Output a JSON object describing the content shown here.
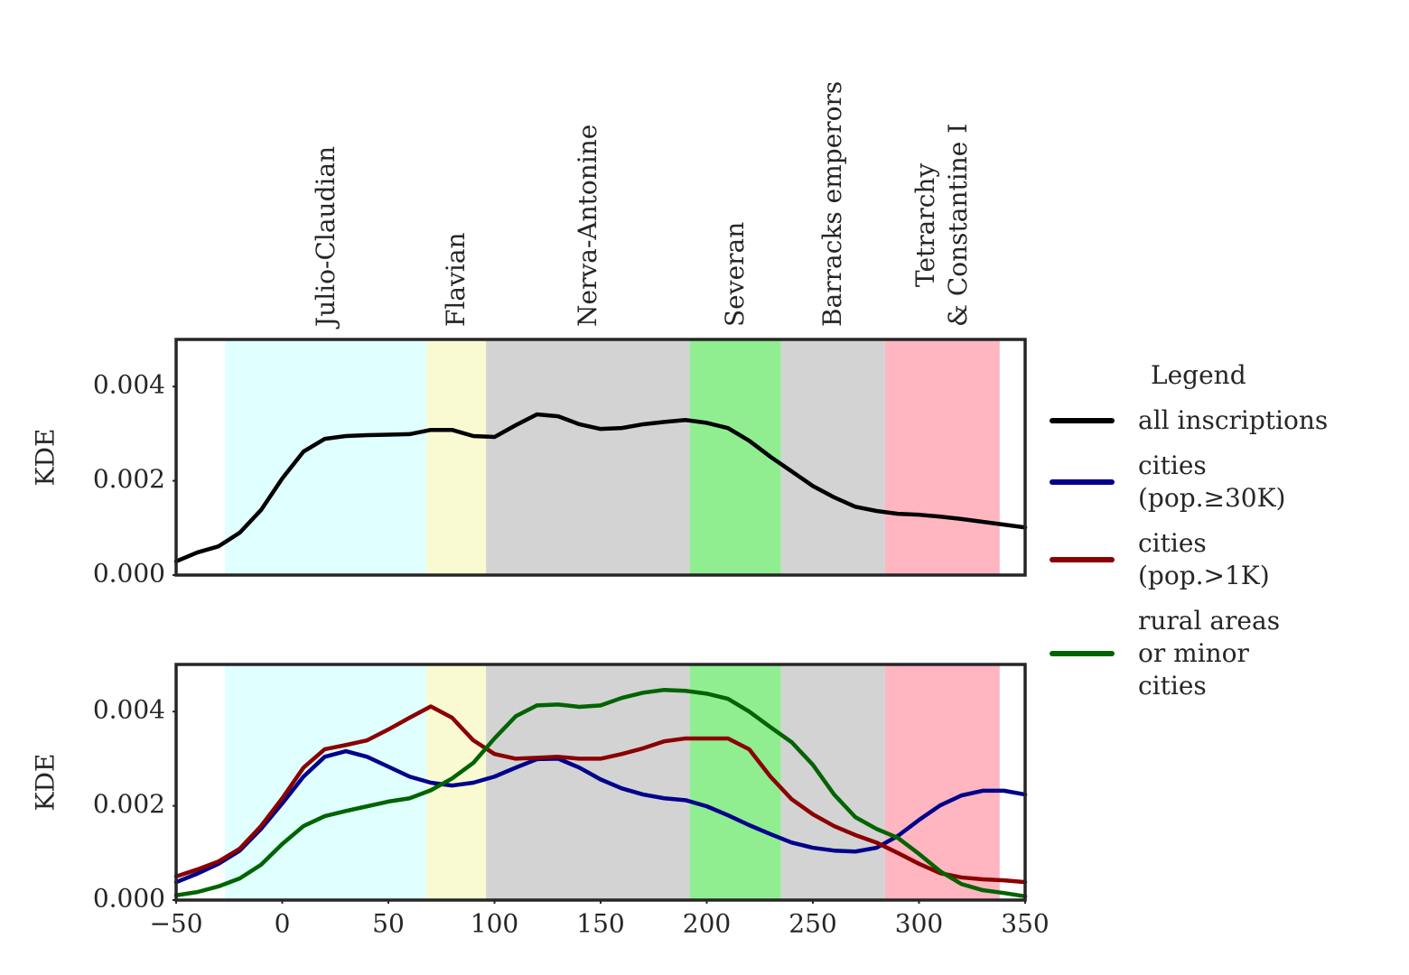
{
  "chart_data": [
    {
      "type": "line",
      "ylabel": "KDE",
      "legend_title": "Legend",
      "x": [
        -50,
        -40,
        -30,
        -20,
        -10,
        0,
        10,
        20,
        30,
        40,
        50,
        60,
        70,
        80,
        90,
        100,
        110,
        120,
        130,
        140,
        150,
        160,
        170,
        180,
        190,
        200,
        210,
        220,
        230,
        240,
        250,
        260,
        270,
        280,
        290,
        300,
        310,
        320,
        330,
        340,
        350
      ],
      "xlim": [
        -50,
        350
      ],
      "ylim": [
        0,
        0.005
      ],
      "yticks": [
        {
          "value": 0,
          "label": "0.000"
        },
        {
          "value": 0.002,
          "label": "0.002"
        },
        {
          "value": 0.004,
          "label": "0.004"
        }
      ],
      "periods": [
        {
          "name": "Julio-Claudian",
          "start": -27,
          "end": 68,
          "color": "#e0ffff"
        },
        {
          "name": "Flavian",
          "start": 68,
          "end": 96,
          "color": "#fafad2"
        },
        {
          "name": "Nerva-Antonine",
          "start": 96,
          "end": 192,
          "color": "#d3d3d3"
        },
        {
          "name": "Severan",
          "start": 192,
          "end": 235,
          "color": "#90ee90"
        },
        {
          "name": "Barracks emperors",
          "start": 235,
          "end": 284,
          "color": "#d3d3d3"
        },
        {
          "name": "Tetrarchy\n& Constantine I",
          "start": 284,
          "end": 338,
          "color": "#ffb6c1"
        }
      ],
      "series": [
        {
          "name": "all inscriptions",
          "color": "#000000",
          "values": [
            0.00029,
            0.00048,
            0.00061,
            0.0009,
            0.00138,
            0.00205,
            0.00262,
            0.00289,
            0.00295,
            0.00297,
            0.00298,
            0.00299,
            0.00308,
            0.00308,
            0.00295,
            0.00293,
            0.00318,
            0.00341,
            0.00337,
            0.0032,
            0.0031,
            0.00312,
            0.0032,
            0.00325,
            0.00329,
            0.00323,
            0.00312,
            0.00285,
            0.00251,
            0.0022,
            0.00189,
            0.00165,
            0.00145,
            0.00136,
            0.0013,
            0.00128,
            0.00124,
            0.00119,
            0.00113,
            0.00107,
            0.00101
          ]
        }
      ]
    },
    {
      "type": "line",
      "ylabel": "KDE",
      "x": [
        -50,
        -40,
        -30,
        -20,
        -10,
        0,
        10,
        20,
        30,
        40,
        50,
        60,
        70,
        80,
        90,
        100,
        110,
        120,
        130,
        140,
        150,
        160,
        170,
        180,
        190,
        200,
        210,
        220,
        230,
        240,
        250,
        260,
        270,
        280,
        290,
        300,
        310,
        320,
        330,
        340,
        350
      ],
      "xlim": [
        -50,
        350
      ],
      "ylim": [
        0,
        0.005
      ],
      "xticks": [
        {
          "value": -50,
          "label": "−50"
        },
        0,
        50,
        100,
        150,
        200,
        250,
        300,
        350
      ],
      "yticks": [
        {
          "value": 0,
          "label": "0.000"
        },
        {
          "value": 0.002,
          "label": "0.002"
        },
        {
          "value": 0.004,
          "label": "0.004"
        }
      ],
      "series": [
        {
          "name": "cities\n(pop.≥30K)",
          "color": "#00008b",
          "values": [
            0.00038,
            0.00056,
            0.00077,
            0.00105,
            0.00151,
            0.00205,
            0.00262,
            0.00304,
            0.00316,
            0.00304,
            0.00283,
            0.00262,
            0.00249,
            0.00243,
            0.00249,
            0.00262,
            0.00281,
            0.00299,
            0.003,
            0.00281,
            0.00256,
            0.00237,
            0.00224,
            0.00216,
            0.00212,
            0.00199,
            0.0018,
            0.00159,
            0.0014,
            0.00122,
            0.00111,
            0.00105,
            0.00103,
            0.00111,
            0.00136,
            0.0017,
            0.00201,
            0.00222,
            0.00232,
            0.00232,
            0.00224
          ]
        },
        {
          "name": "cities\n(pop.>1K)",
          "color": "#8b0000",
          "values": [
            0.0005,
            0.00065,
            0.00082,
            0.00109,
            0.00157,
            0.00216,
            0.00281,
            0.0032,
            0.00329,
            0.00339,
            0.00362,
            0.00387,
            0.00411,
            0.00387,
            0.00339,
            0.0031,
            0.003,
            0.00302,
            0.00304,
            0.003,
            0.003,
            0.0031,
            0.00322,
            0.00337,
            0.00343,
            0.00343,
            0.00343,
            0.0032,
            0.00262,
            0.00214,
            0.00182,
            0.00157,
            0.00138,
            0.00122,
            0.001,
            0.00077,
            0.00057,
            0.00048,
            0.00044,
            0.00042,
            0.00038
          ]
        },
        {
          "name": "rural areas\nor minor\ncities",
          "color": "#006400",
          "values": [
            0.0001,
            0.00017,
            0.00029,
            0.00046,
            0.00075,
            0.00119,
            0.00157,
            0.00178,
            0.00189,
            0.00199,
            0.00209,
            0.00216,
            0.00233,
            0.00258,
            0.00291,
            0.00343,
            0.0039,
            0.00413,
            0.00415,
            0.0041,
            0.00413,
            0.00429,
            0.0044,
            0.00446,
            0.00444,
            0.00438,
            0.00427,
            0.004,
            0.00367,
            0.00335,
            0.00287,
            0.00224,
            0.00176,
            0.00151,
            0.00132,
            0.00098,
            0.00061,
            0.00034,
            0.00021,
            0.00015,
            8e-05
          ]
        }
      ]
    }
  ]
}
